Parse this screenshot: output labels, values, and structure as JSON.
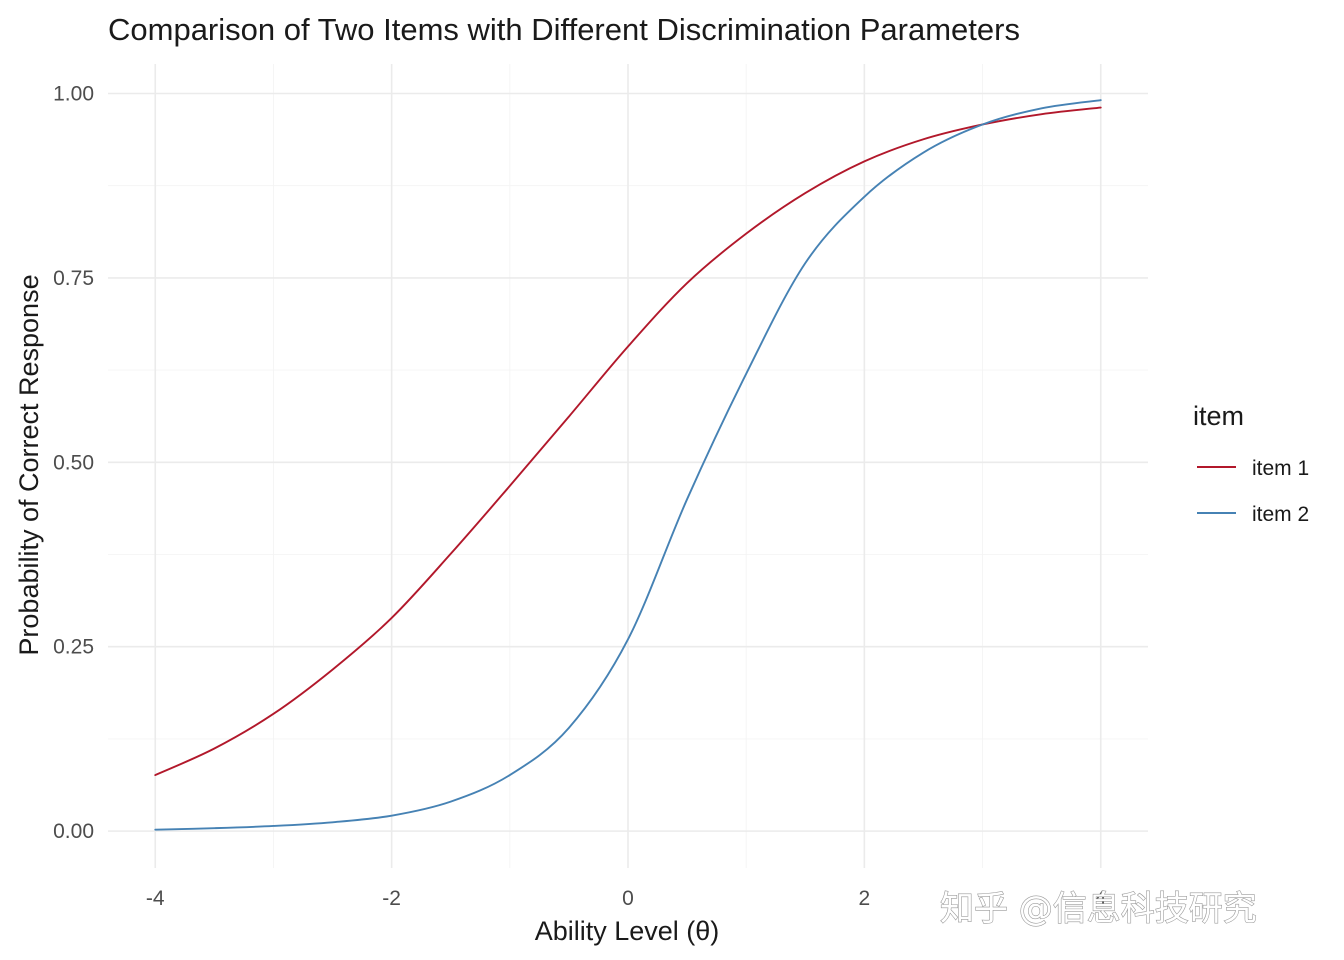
{
  "chart_data": {
    "type": "line",
    "title": "Comparison of Two Items with Different Discrimination Parameters",
    "xlabel": "Ability Level (θ)",
    "ylabel": "Probability of Correct Response",
    "xlim": [
      -4.4,
      4.4
    ],
    "ylim": [
      -0.05,
      1.04
    ],
    "xticks": [
      -4,
      -2,
      0,
      2,
      4
    ],
    "xtick_labels": [
      "-4",
      "-2",
      "0",
      "2",
      "4"
    ],
    "yticks": [
      0,
      0.25,
      0.5,
      0.75,
      1
    ],
    "ytick_labels": [
      "0.00",
      "0.25",
      "0.50",
      "0.75",
      "1.00"
    ],
    "grid": true,
    "legend": {
      "title": "item",
      "placement": "right"
    },
    "x": [
      -4,
      -3.5,
      -3,
      -2.5,
      -2,
      -1.5,
      -1,
      -0.5,
      0,
      0.5,
      1,
      1.5,
      2,
      2.5,
      3,
      3.5,
      4
    ],
    "series": [
      {
        "name": "item 1",
        "color": "#b2182b",
        "values": [
          0.076,
          0.112,
          0.159,
          0.219,
          0.289,
          0.376,
          0.468,
          0.562,
          0.657,
          0.743,
          0.81,
          0.865,
          0.908,
          0.938,
          0.958,
          0.972,
          0.981
        ]
      },
      {
        "name": "item 2",
        "color": "#4682b4",
        "values": [
          0.002,
          0.004,
          0.007,
          0.012,
          0.021,
          0.04,
          0.076,
          0.14,
          0.26,
          0.45,
          0.62,
          0.77,
          0.86,
          0.92,
          0.958,
          0.98,
          0.991
        ]
      }
    ]
  },
  "watermark": {
    "text": "知乎 @信息科技研究"
  }
}
